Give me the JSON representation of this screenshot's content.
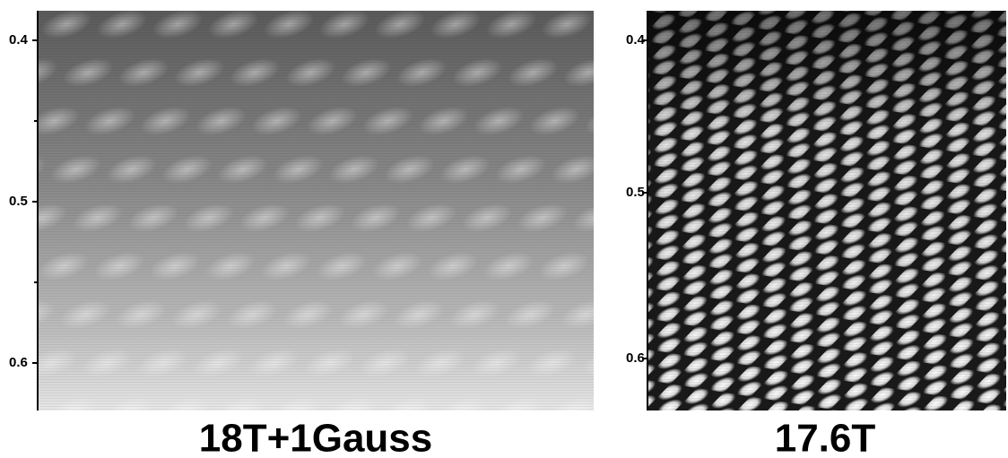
{
  "panels": [
    {
      "caption": "18T+1Gauss",
      "axis_labels": [
        "0.4",
        "0.5",
        "0.6"
      ]
    },
    {
      "caption": "17.6T",
      "axis_labels": [
        "0.4",
        "0.5",
        "0.6"
      ]
    }
  ]
}
